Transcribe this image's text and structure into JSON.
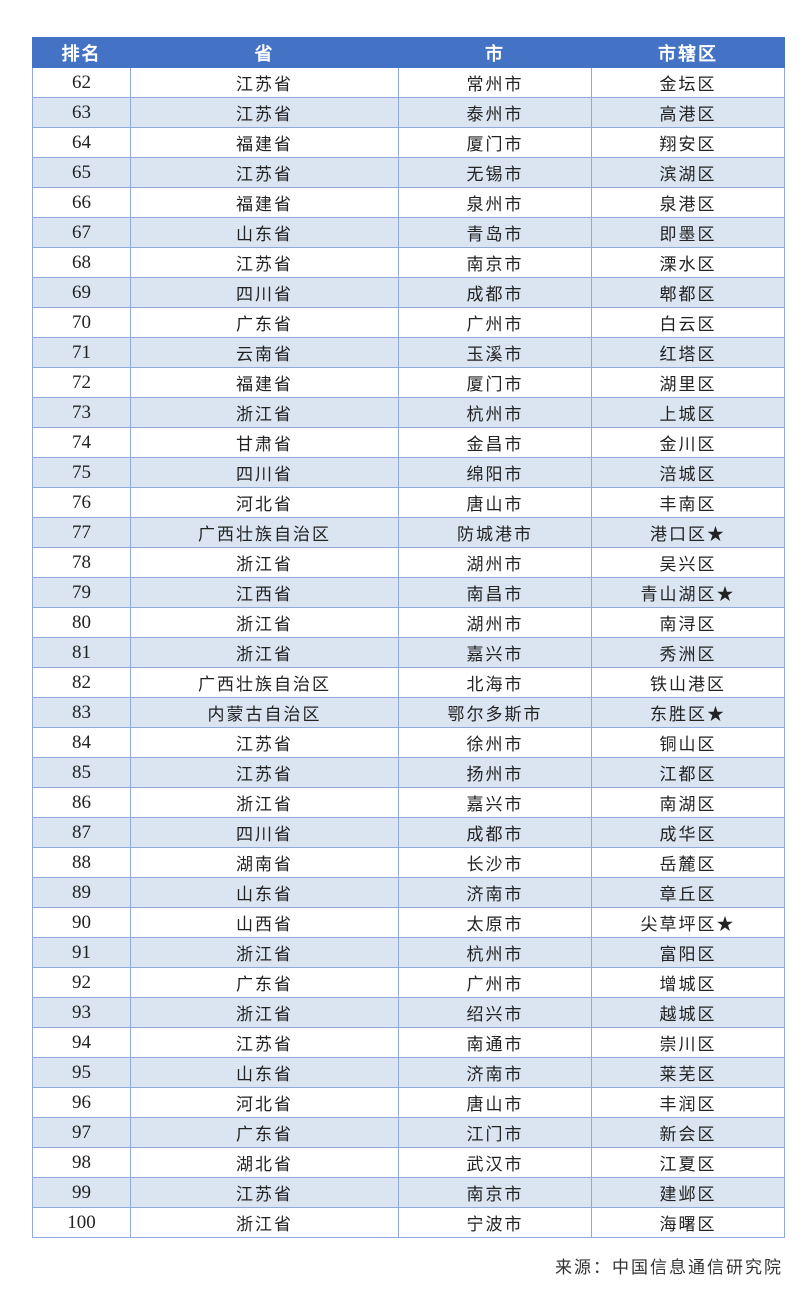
{
  "table": {
    "headers": [
      "排名",
      "省",
      "市",
      "市辖区"
    ],
    "rows": [
      [
        "62",
        "江苏省",
        "常州市",
        "金坛区"
      ],
      [
        "63",
        "江苏省",
        "泰州市",
        "高港区"
      ],
      [
        "64",
        "福建省",
        "厦门市",
        "翔安区"
      ],
      [
        "65",
        "江苏省",
        "无锡市",
        "滨湖区"
      ],
      [
        "66",
        "福建省",
        "泉州市",
        "泉港区"
      ],
      [
        "67",
        "山东省",
        "青岛市",
        "即墨区"
      ],
      [
        "68",
        "江苏省",
        "南京市",
        "溧水区"
      ],
      [
        "69",
        "四川省",
        "成都市",
        "郫都区"
      ],
      [
        "70",
        "广东省",
        "广州市",
        "白云区"
      ],
      [
        "71",
        "云南省",
        "玉溪市",
        "红塔区"
      ],
      [
        "72",
        "福建省",
        "厦门市",
        "湖里区"
      ],
      [
        "73",
        "浙江省",
        "杭州市",
        "上城区"
      ],
      [
        "74",
        "甘肃省",
        "金昌市",
        "金川区"
      ],
      [
        "75",
        "四川省",
        "绵阳市",
        "涪城区"
      ],
      [
        "76",
        "河北省",
        "唐山市",
        "丰南区"
      ],
      [
        "77",
        "广西壮族自治区",
        "防城港市",
        "港口区★"
      ],
      [
        "78",
        "浙江省",
        "湖州市",
        "吴兴区"
      ],
      [
        "79",
        "江西省",
        "南昌市",
        "青山湖区★"
      ],
      [
        "80",
        "浙江省",
        "湖州市",
        "南浔区"
      ],
      [
        "81",
        "浙江省",
        "嘉兴市",
        "秀洲区"
      ],
      [
        "82",
        "广西壮族自治区",
        "北海市",
        "铁山港区"
      ],
      [
        "83",
        "内蒙古自治区",
        "鄂尔多斯市",
        "东胜区★"
      ],
      [
        "84",
        "江苏省",
        "徐州市",
        "铜山区"
      ],
      [
        "85",
        "江苏省",
        "扬州市",
        "江都区"
      ],
      [
        "86",
        "浙江省",
        "嘉兴市",
        "南湖区"
      ],
      [
        "87",
        "四川省",
        "成都市",
        "成华区"
      ],
      [
        "88",
        "湖南省",
        "长沙市",
        "岳麓区"
      ],
      [
        "89",
        "山东省",
        "济南市",
        "章丘区"
      ],
      [
        "90",
        "山西省",
        "太原市",
        "尖草坪区★"
      ],
      [
        "91",
        "浙江省",
        "杭州市",
        "富阳区"
      ],
      [
        "92",
        "广东省",
        "广州市",
        "增城区"
      ],
      [
        "93",
        "浙江省",
        "绍兴市",
        "越城区"
      ],
      [
        "94",
        "江苏省",
        "南通市",
        "崇川区"
      ],
      [
        "95",
        "山东省",
        "济南市",
        "莱芜区"
      ],
      [
        "96",
        "河北省",
        "唐山市",
        "丰润区"
      ],
      [
        "97",
        "广东省",
        "江门市",
        "新会区"
      ],
      [
        "98",
        "湖北省",
        "武汉市",
        "江夏区"
      ],
      [
        "99",
        "江苏省",
        "南京市",
        "建邺区"
      ],
      [
        "100",
        "浙江省",
        "宁波市",
        "海曙区"
      ]
    ]
  },
  "source": "来源：中国信息通信研究院",
  "colors": {
    "header_bg": "#4472c4",
    "stripe_bg": "#dbe5f1",
    "border": "#8eaadb"
  }
}
